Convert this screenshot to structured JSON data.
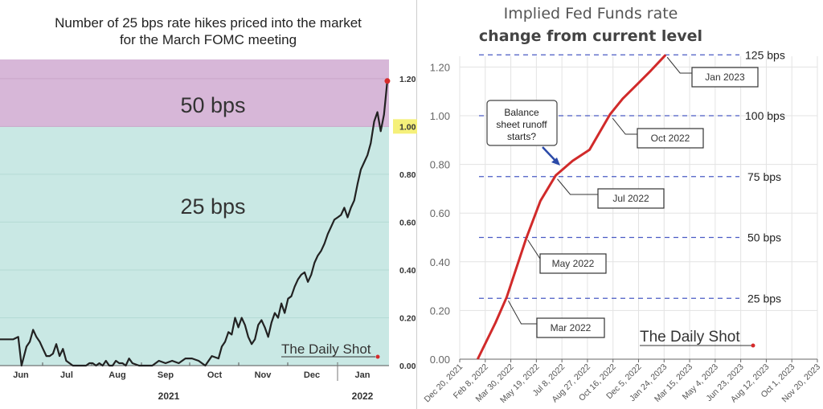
{
  "chart_data": [
    {
      "type": "line",
      "title": "Number of 25 bps rate hikes priced into the market for the March FOMC meeting",
      "title_lines": [
        "Number of 25 bps rate hikes priced into the market",
        "for the March FOMC meeting"
      ],
      "ylim": [
        0,
        1.28
      ],
      "yticks": [
        "0.00",
        "0.20",
        "0.40",
        "0.60",
        "0.80",
        "1.00",
        "1.20"
      ],
      "ytick_values": [
        0,
        0.2,
        0.4,
        0.6,
        0.8,
        1.0,
        1.2
      ],
      "highlighted_ytick": "1.00",
      "highlight_color": "#f5f07a",
      "bands": [
        {
          "label": "50 bps",
          "from": 1.0,
          "to": 1.28,
          "color": "#d7b7d8"
        },
        {
          "label": "25 bps",
          "from": 0.0,
          "to": 1.0,
          "color": "#c9e8e4"
        }
      ],
      "month_labels": [
        "Jun",
        "Jul",
        "Aug",
        "Sep",
        "Oct",
        "Nov",
        "Dec",
        "Jan"
      ],
      "year_labels": [
        "2021",
        "2022"
      ],
      "x_domain_days": [
        0,
        235
      ],
      "series": [
        {
          "name": "Rate hikes priced",
          "color": "#222222",
          "end_marker_color": "#d62b2b",
          "x": [
            0,
            4,
            8,
            11,
            13,
            16,
            18,
            20,
            22,
            24,
            26,
            28,
            30,
            32,
            34,
            36,
            38,
            40,
            42,
            44,
            47,
            50,
            52,
            54,
            56,
            58,
            60,
            62,
            64,
            66,
            68,
            70,
            72,
            74,
            76,
            78,
            80,
            84,
            88,
            92,
            96,
            100,
            104,
            108,
            112,
            116,
            120,
            124,
            128,
            132,
            134,
            136,
            138,
            140,
            142,
            144,
            146,
            148,
            150,
            152,
            154,
            156,
            158,
            160,
            162,
            164,
            166,
            168,
            170,
            172,
            174,
            176,
            178,
            180,
            182,
            184,
            186,
            188,
            190,
            192,
            194,
            196,
            198,
            200,
            202,
            204,
            206,
            208,
            210,
            212,
            214,
            216,
            218,
            220,
            222,
            224,
            226,
            228,
            230,
            232,
            234
          ],
          "values": [
            0.11,
            0.11,
            0.11,
            0.12,
            0.0,
            0.08,
            0.1,
            0.15,
            0.12,
            0.1,
            0.07,
            0.04,
            0.04,
            0.05,
            0.09,
            0.04,
            0.07,
            0.02,
            0.01,
            0.0,
            0.0,
            0.0,
            0.0,
            0.01,
            0.01,
            0.0,
            0.01,
            0.0,
            0.02,
            0.0,
            0.0,
            0.02,
            0.01,
            0.01,
            0.0,
            0.03,
            0.01,
            0.0,
            0.0,
            0.0,
            0.02,
            0.01,
            0.02,
            0.01,
            0.03,
            0.03,
            0.02,
            0.0,
            0.04,
            0.03,
            0.08,
            0.1,
            0.14,
            0.13,
            0.2,
            0.16,
            0.2,
            0.17,
            0.12,
            0.09,
            0.11,
            0.17,
            0.19,
            0.16,
            0.12,
            0.18,
            0.22,
            0.2,
            0.26,
            0.22,
            0.28,
            0.29,
            0.33,
            0.36,
            0.38,
            0.39,
            0.35,
            0.38,
            0.43,
            0.46,
            0.48,
            0.51,
            0.55,
            0.58,
            0.61,
            0.62,
            0.63,
            0.66,
            0.62,
            0.66,
            0.69,
            0.76,
            0.82,
            0.85,
            0.88,
            0.93,
            1.02,
            1.06,
            0.98,
            1.05,
            1.19
          ]
        }
      ],
      "watermark": "The Daily Shot"
    },
    {
      "type": "line",
      "title": "Implied Fed Funds rate",
      "subtitle": "change from current level",
      "ylim": [
        0,
        1.26
      ],
      "yticks": [
        "0.00",
        "0.20",
        "0.40",
        "0.60",
        "0.80",
        "1.00",
        "1.20"
      ],
      "ytick_values": [
        0,
        0.2,
        0.4,
        0.6,
        0.8,
        1.0,
        1.2
      ],
      "xticks": [
        "Dec 20, 2021",
        "Feb 8, 2022",
        "Mar 30, 2022",
        "May 19, 2022",
        "Jul 8, 2022",
        "Aug 27, 2022",
        "Oct 16, 2022",
        "Dec 5, 2022",
        "Jan 24, 2023",
        "Mar 15, 2023",
        "May 4, 2023",
        "Jun 23, 2023",
        "Aug 12, 2023",
        "Oct 1, 2023",
        "Nov 20, 2023"
      ],
      "x_domain_days": [
        0,
        700
      ],
      "reference_lines": [
        {
          "value": 0.25,
          "label": "25 bps"
        },
        {
          "value": 0.5,
          "label": "50 bps"
        },
        {
          "value": 0.75,
          "label": "75 bps"
        },
        {
          "value": 1.0,
          "label": "100 bps"
        },
        {
          "value": 1.25,
          "label": "125 bps"
        }
      ],
      "reference_color": "#4a5bc4",
      "series": [
        {
          "name": "Implied Fed Funds rate change",
          "color": "#d12a2a",
          "end_marker_color": "#d62b2b",
          "x": [
            35,
            70,
            92,
            130,
            158,
            188,
            221,
            254,
            294,
            319,
            348,
            374,
            403
          ],
          "values": [
            0.0,
            0.15,
            0.255,
            0.495,
            0.65,
            0.755,
            0.815,
            0.86,
            1.005,
            1.07,
            1.13,
            1.185,
            1.25
          ]
        }
      ],
      "annotations": [
        {
          "label": "Mar 2022",
          "at_x": 92,
          "at_value": 0.25
        },
        {
          "label": "May 2022",
          "at_x": 130,
          "at_value": 0.5
        },
        {
          "label": "Jul 2022",
          "at_x": 188,
          "at_value": 0.75
        },
        {
          "label": "Oct 2022",
          "at_x": 296,
          "at_value": 1.0
        },
        {
          "label": "Jan 2023",
          "at_x": 403,
          "at_value": 1.25
        }
      ],
      "callout": {
        "lines": [
          "Balance",
          "sheet runoff",
          "starts?"
        ],
        "arrow_color": "#2b4aa8"
      },
      "watermark": "The Daily Shot"
    }
  ]
}
